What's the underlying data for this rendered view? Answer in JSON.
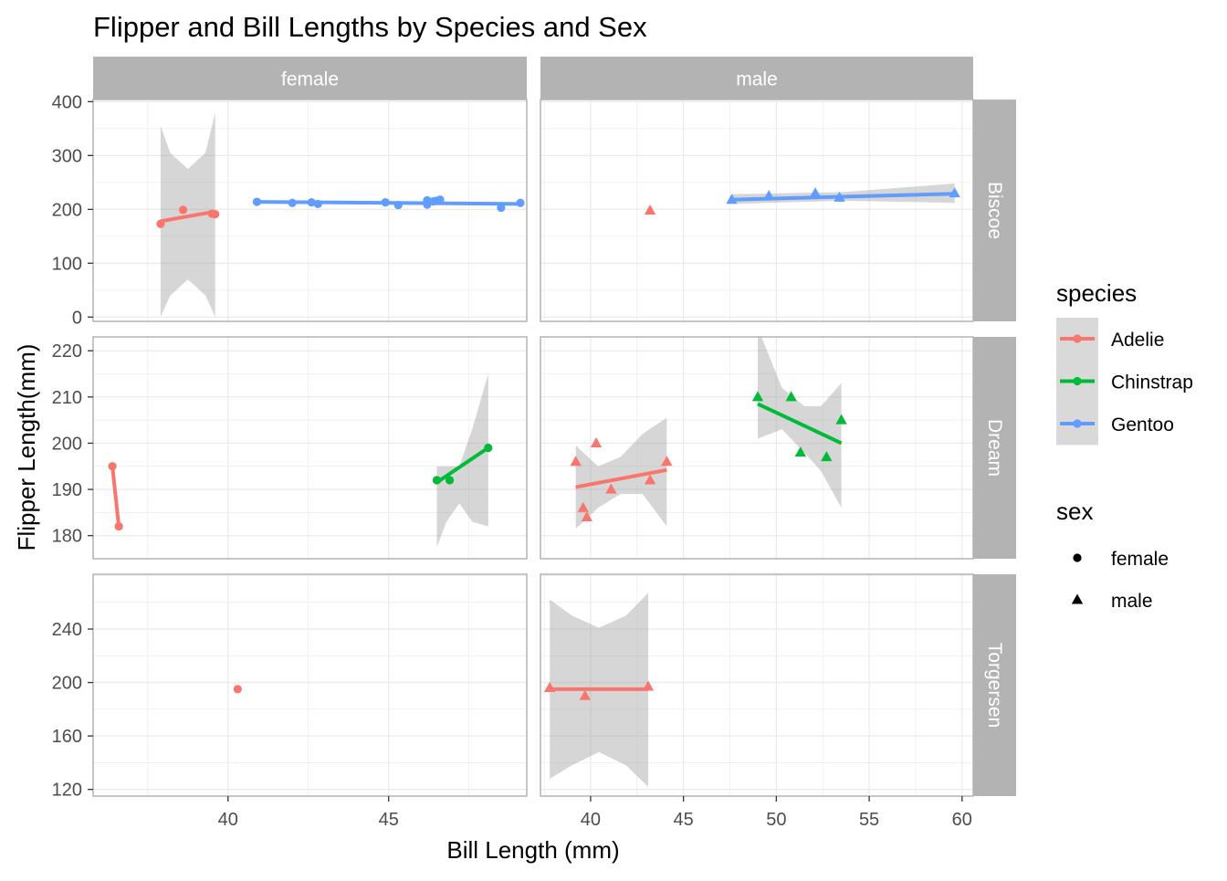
{
  "chart_data": {
    "type": "scatter",
    "title": "Flipper and Bill Lengths by Species and Sex",
    "xlabel": "Bill Length (mm)",
    "ylabel": "Flipper Length(mm)",
    "facet_columns": [
      "female",
      "male"
    ],
    "facet_rows": [
      "Biscoe",
      "Dream",
      "Torgersen"
    ],
    "grid": true,
    "smooth": "linear fit with confidence band",
    "columns": [
      {
        "label": "female",
        "xlim": [
          35.8,
          49.3
        ],
        "xticks": [
          40,
          45
        ]
      },
      {
        "label": "male",
        "xlim": [
          37.3,
          60.6
        ],
        "xticks": [
          40,
          45,
          50,
          55,
          60
        ]
      }
    ],
    "rows": [
      {
        "label": "Biscoe",
        "ylim": [
          -8,
          404
        ],
        "yticks": [
          0,
          100,
          200,
          300,
          400
        ]
      },
      {
        "label": "Dream",
        "ylim": [
          175,
          223
        ],
        "yticks": [
          180,
          190,
          200,
          210,
          220
        ]
      },
      {
        "label": "Torgersen",
        "ylim": [
          115,
          281
        ],
        "yticks": [
          120,
          160,
          200,
          240
        ]
      }
    ],
    "colors": {
      "Adelie": "#F8766D",
      "Chinstrap": "#00BA38",
      "Gentoo": "#619CFF"
    },
    "panels": [
      {
        "row": 0,
        "col": 0,
        "groups": [
          {
            "species": "Adelie",
            "sex": "female",
            "points": [
              [
                37.9,
                173
              ],
              [
                38.6,
                199
              ],
              [
                39.5,
                192
              ],
              [
                39.6,
                191
              ]
            ],
            "fit": {
              "x": [
                37.9,
                39.6
              ],
              "y": [
                178,
                196
              ]
            },
            "band": [
              [
                37.9,
                0,
                355
              ],
              [
                38.2,
                40,
                305
              ],
              [
                38.75,
                70,
                275
              ],
              [
                39.3,
                40,
                305
              ],
              [
                39.6,
                0,
                380
              ]
            ]
          },
          {
            "species": "Gentoo",
            "sex": "female",
            "points": [
              [
                40.9,
                214
              ],
              [
                42.0,
                212
              ],
              [
                42.6,
                213
              ],
              [
                42.8,
                210
              ],
              [
                44.9,
                213
              ],
              [
                45.3,
                208
              ],
              [
                46.2,
                209
              ],
              [
                46.2,
                217
              ],
              [
                46.4,
                215
              ],
              [
                46.5,
                216
              ],
              [
                46.6,
                218
              ],
              [
                48.5,
                203
              ],
              [
                49.1,
                212
              ]
            ],
            "fit": {
              "x": [
                40.9,
                49.1
              ],
              "y": [
                214,
                210
              ]
            }
          }
        ]
      },
      {
        "row": 0,
        "col": 1,
        "groups": [
          {
            "species": "Adelie",
            "sex": "male",
            "points": [
              [
                43.2,
                198
              ]
            ]
          },
          {
            "species": "Gentoo",
            "sex": "male",
            "points": [
              [
                47.6,
                218
              ],
              [
                49.6,
                225
              ],
              [
                52.1,
                230
              ],
              [
                53.4,
                222
              ],
              [
                59.6,
                230
              ]
            ],
            "fit": {
              "x": [
                47.6,
                59.6
              ],
              "y": [
                218,
                229
              ]
            },
            "band": [
              [
                47.6,
                210,
                228
              ],
              [
                53.6,
                216,
                232
              ],
              [
                59.6,
                212,
                248
              ]
            ]
          }
        ]
      },
      {
        "row": 1,
        "col": 0,
        "groups": [
          {
            "species": "Adelie",
            "sex": "female",
            "points": [
              [
                36.4,
                195
              ],
              [
                36.6,
                182
              ]
            ],
            "fit": {
              "x": [
                36.4,
                36.6
              ],
              "y": [
                195,
                182
              ]
            }
          },
          {
            "species": "Chinstrap",
            "sex": "female",
            "points": [
              [
                46.5,
                192
              ],
              [
                46.9,
                192
              ],
              [
                48.1,
                199
              ]
            ],
            "fit": {
              "x": [
                46.5,
                48.1
              ],
              "y": [
                191.5,
                199
              ]
            },
            "band": [
              [
                46.5,
                177.5,
                195
              ],
              [
                46.8,
                183,
                195
              ],
              [
                47.2,
                187,
                195
              ],
              [
                47.6,
                183,
                203
              ],
              [
                48.1,
                182,
                215
              ]
            ]
          }
        ]
      },
      {
        "row": 1,
        "col": 1,
        "groups": [
          {
            "species": "Adelie",
            "sex": "male",
            "points": [
              [
                39.2,
                196
              ],
              [
                39.6,
                186
              ],
              [
                39.8,
                184
              ],
              [
                40.3,
                200
              ],
              [
                41.1,
                190
              ],
              [
                43.2,
                192
              ],
              [
                44.1,
                196
              ]
            ],
            "fit": {
              "x": [
                39.2,
                44.1
              ],
              "y": [
                190.5,
                194.2
              ]
            },
            "band": [
              [
                39.2,
                181.5,
                199.5
              ],
              [
                40.4,
                186,
                195
              ],
              [
                41.6,
                189,
                197
              ],
              [
                42.8,
                189,
                202
              ],
              [
                44.1,
                182,
                205.5
              ]
            ]
          },
          {
            "species": "Chinstrap",
            "sex": "male",
            "points": [
              [
                49.0,
                210
              ],
              [
                50.8,
                210
              ],
              [
                51.3,
                198
              ],
              [
                52.7,
                197
              ],
              [
                53.5,
                205
              ]
            ],
            "fit": {
              "x": [
                49.0,
                53.5
              ],
              "y": [
                208.5,
                200
              ]
            },
            "band": [
              [
                49.0,
                201,
                225
              ],
              [
                50.3,
                203,
                212
              ],
              [
                51.5,
                198,
                208
              ],
              [
                52.4,
                194,
                208
              ],
              [
                53.5,
                186,
                213
              ]
            ]
          }
        ]
      },
      {
        "row": 2,
        "col": 0,
        "groups": [
          {
            "species": "Adelie",
            "sex": "female",
            "points": [
              [
                40.3,
                195
              ]
            ]
          }
        ]
      },
      {
        "row": 2,
        "col": 1,
        "groups": [
          {
            "species": "Adelie",
            "sex": "male",
            "points": [
              [
                37.8,
                196
              ],
              [
                39.7,
                190
              ],
              [
                43.1,
                197
              ]
            ],
            "fit": {
              "x": [
                37.8,
                43.1
              ],
              "y": [
                195,
                195
              ]
            },
            "band": [
              [
                37.8,
                128,
                262
              ],
              [
                39.0,
                138,
                250
              ],
              [
                40.45,
                148,
                241
              ],
              [
                41.9,
                138,
                250
              ],
              [
                43.1,
                122,
                267
              ]
            ]
          }
        ]
      }
    ],
    "legend": {
      "position": "right",
      "species": {
        "title": "species",
        "entries": [
          "Adelie",
          "Chinstrap",
          "Gentoo"
        ]
      },
      "sex": {
        "title": "sex",
        "entries": [
          "female",
          "male"
        ]
      }
    }
  }
}
